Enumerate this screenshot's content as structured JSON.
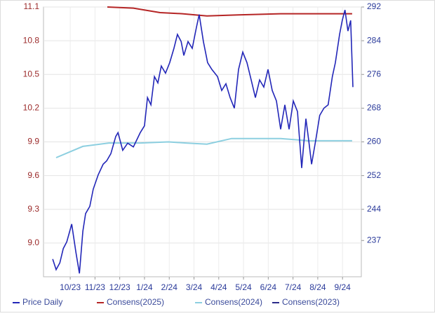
{
  "chart_data": {
    "type": "line",
    "xticks": [
      {
        "value": 0,
        "label": "10/23"
      },
      {
        "value": 1,
        "label": "11/23"
      },
      {
        "value": 2,
        "label": "12/23"
      },
      {
        "value": 3,
        "label": "1/24"
      },
      {
        "value": 4,
        "label": "2/24"
      },
      {
        "value": 5,
        "label": "3/24"
      },
      {
        "value": 6,
        "label": "4/24"
      },
      {
        "value": 7,
        "label": "5/24"
      },
      {
        "value": 8,
        "label": "6/24"
      },
      {
        "value": 9,
        "label": "7/24"
      },
      {
        "value": 10,
        "label": "8/24"
      },
      {
        "value": 11,
        "label": "9/24"
      }
    ],
    "xlim": [
      -1.08,
      11.76
    ],
    "ylim": [
      8.7,
      11.1
    ],
    "yticks": [
      11.1,
      10.8,
      10.5,
      10.2,
      9.9,
      9.6,
      9.3,
      {
        "value": 9,
        "label": "9.0"
      }
    ],
    "y2lim": [
      228,
      292
    ],
    "y2ticks": [
      292,
      284,
      276,
      268,
      260,
      252,
      244,
      {
        "value": 236.6,
        "label": "237"
      }
    ],
    "grid": true,
    "legend": "bottom",
    "series": [
      {
        "name": "Price Daily",
        "color": "#2226b8",
        "axis": "y2",
        "x": [
          -0.71,
          -0.57,
          -0.42,
          -0.28,
          -0.14,
          0.06,
          0.23,
          0.37,
          0.51,
          0.62,
          0.79,
          0.93,
          1.13,
          1.33,
          1.47,
          1.64,
          1.84,
          1.93,
          2.12,
          2.32,
          2.55,
          2.69,
          2.83,
          3.0,
          3.12,
          3.26,
          3.4,
          3.54,
          3.68,
          3.85,
          4.02,
          4.19,
          4.33,
          4.48,
          4.59,
          4.76,
          4.93,
          5.1,
          5.21,
          5.38,
          5.55,
          5.72,
          5.95,
          6.12,
          6.29,
          6.46,
          6.63,
          6.8,
          6.97,
          7.14,
          7.31,
          7.48,
          7.65,
          7.82,
          7.99,
          8.16,
          8.33,
          8.5,
          8.67,
          8.84,
          9.01,
          9.18,
          9.35,
          9.52,
          9.63,
          9.75,
          9.92,
          10.08,
          10.25,
          10.42,
          10.59,
          10.71,
          10.88,
          10.99,
          11.1,
          11.22,
          11.33,
          11.42
        ],
        "values": [
          232.2,
          229.7,
          231.3,
          234.7,
          236.3,
          240.5,
          233.8,
          228.8,
          238.8,
          243,
          244.7,
          248.8,
          252.2,
          254.7,
          255.5,
          257.2,
          261.3,
          262.2,
          258,
          259.7,
          258.8,
          260.5,
          262.2,
          263.8,
          270.5,
          268.8,
          275.5,
          274,
          278,
          276.3,
          278.8,
          282.2,
          285.5,
          283.8,
          280.5,
          283.8,
          282.2,
          287.2,
          290.2,
          283.8,
          278.8,
          277.2,
          275.5,
          272.2,
          273.8,
          270.5,
          268,
          277.2,
          281.3,
          278.8,
          274.7,
          270.5,
          274.7,
          273,
          277.2,
          272.2,
          269.7,
          263,
          268.8,
          263,
          269.7,
          267.2,
          253.8,
          265.5,
          260.5,
          254.7,
          260.5,
          266.3,
          268,
          268.8,
          275.5,
          278.8,
          285.5,
          288.8,
          291.3,
          286.3,
          288.8,
          273
        ]
      },
      {
        "name": "Consens(2025)",
        "color": "#b52525",
        "x": [
          1.5,
          2.55,
          3.63,
          4.53,
          5.52,
          6.8,
          8.5,
          11.39
        ],
        "values": [
          11.1,
          11.09,
          11.05,
          11.04,
          11.02,
          11.03,
          11.04,
          11.04
        ]
      },
      {
        "name": "Consens(2024)",
        "color": "#8ccfe0",
        "x": [
          -0.57,
          0.51,
          1.56,
          2.83,
          3.97,
          4.67,
          5.52,
          6.52,
          8.5,
          9.63,
          11.39
        ],
        "values": [
          9.76,
          9.86,
          9.89,
          9.89,
          9.9,
          9.89,
          9.88,
          9.93,
          9.93,
          9.91,
          9.91
        ]
      },
      {
        "name": "Consens(2023)",
        "color": "#2a2a8a",
        "x": [],
        "values": []
      }
    ]
  }
}
